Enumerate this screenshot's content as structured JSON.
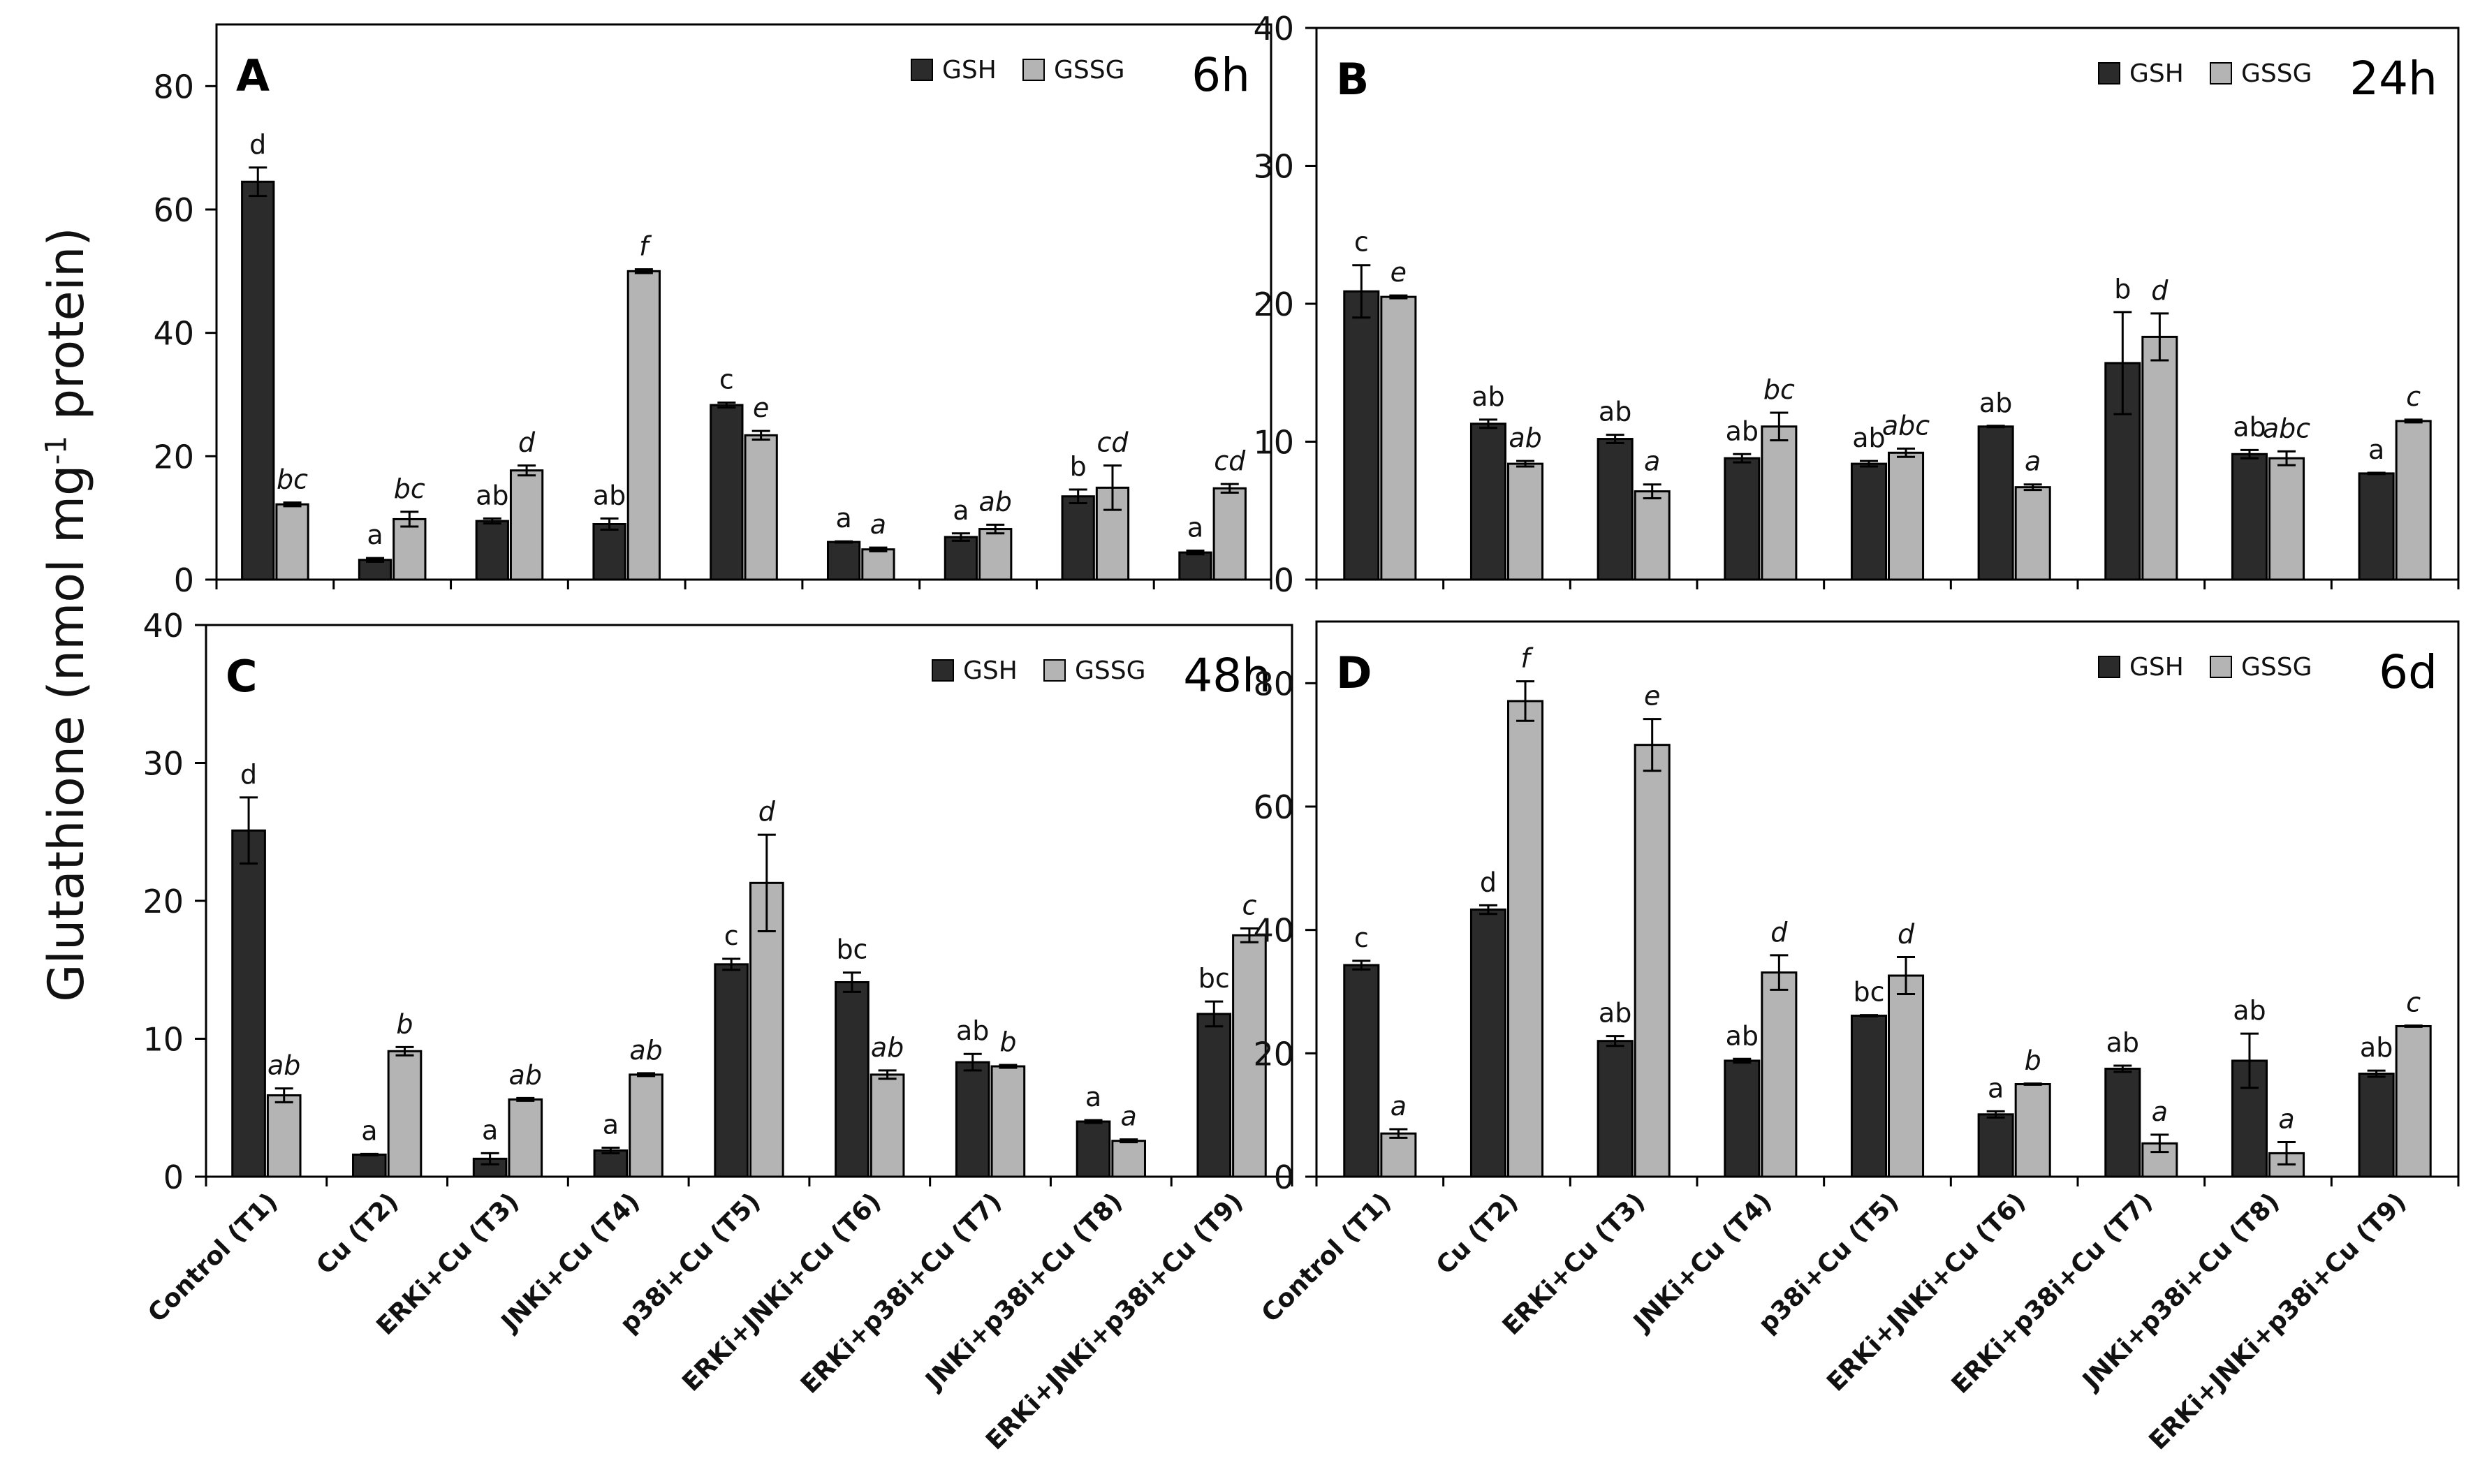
{
  "figure": {
    "ylabel_main": "Glutathione (nmol mg",
    "ylabel_sup": "-1",
    "ylabel_tail": " protein)"
  },
  "chart_data": [
    {
      "type": "bar",
      "panel": "A",
      "time": "6h",
      "categories": [
        "Control (T1)",
        "Cu (T2)",
        "ERKi+Cu (T3)",
        "JNKi+Cu (T4)",
        "p38i+Cu (T5)",
        "ERKi+JNKi+Cu (T6)",
        "ERKi+p38i+Cu (T7)",
        "JNKi+p38i+Cu (T8)",
        "ERKi+JNKi+p38i+Cu (T9)"
      ],
      "series": [
        {
          "name": "GSH",
          "color": "#2b2b2b",
          "values": [
            64.5,
            3.2,
            9.5,
            9.0,
            28.3,
            6.1,
            6.9,
            13.5,
            4.4
          ],
          "errors": [
            2.3,
            0.3,
            0.4,
            0.9,
            0.4,
            0.1,
            0.6,
            1.1,
            0.3
          ],
          "labels": [
            "d",
            "a",
            "ab",
            "ab",
            "c",
            "a",
            "a",
            "b",
            "a"
          ]
        },
        {
          "name": "GSSG",
          "color": "#b4b4b4",
          "values": [
            12.2,
            9.8,
            17.7,
            50.0,
            23.4,
            4.9,
            8.2,
            14.9,
            14.8
          ],
          "errors": [
            0.3,
            1.2,
            0.8,
            0.3,
            0.7,
            0.3,
            0.7,
            3.6,
            0.7
          ],
          "labels": [
            "bc",
            "bc",
            "d",
            "f",
            "e",
            "a",
            "ab",
            "cd",
            "cd"
          ]
        }
      ],
      "yticks": [
        0,
        20,
        40,
        60,
        80
      ],
      "ylim": [
        0,
        90
      ],
      "legend": "top-right",
      "xlabel": "",
      "ylabel": ""
    },
    {
      "type": "bar",
      "panel": "B",
      "time": "24h",
      "categories": [
        "Control (T1)",
        "Cu (T2)",
        "ERKi+Cu (T3)",
        "JNKi+Cu (T4)",
        "p38i+Cu (T5)",
        "ERKi+JNKi+Cu (T6)",
        "ERKi+p38i+Cu (T7)",
        "JNKi+p38i+Cu (T8)",
        "ERKi+JNKi+p38i+Cu (T9)"
      ],
      "series": [
        {
          "name": "GSH",
          "color": "#2b2b2b",
          "values": [
            20.9,
            11.3,
            10.2,
            8.8,
            8.4,
            11.1,
            15.7,
            9.1,
            7.7
          ],
          "errors": [
            1.9,
            0.3,
            0.3,
            0.3,
            0.2,
            0.05,
            3.7,
            0.3,
            0.05
          ],
          "labels": [
            "c",
            "ab",
            "ab",
            "ab",
            "ab",
            "ab",
            "b",
            "ab",
            "a"
          ]
        },
        {
          "name": "GSSG",
          "color": "#b4b4b4",
          "values": [
            20.5,
            8.4,
            6.4,
            11.1,
            9.2,
            6.7,
            17.6,
            8.8,
            11.5
          ],
          "errors": [
            0.1,
            0.2,
            0.5,
            1.0,
            0.3,
            0.2,
            1.7,
            0.5,
            0.1
          ],
          "labels": [
            "e",
            "ab",
            "a",
            "bc",
            "abc",
            "a",
            "d",
            "abc",
            "c"
          ]
        }
      ],
      "yticks": [
        0,
        10,
        20,
        30,
        40
      ],
      "ylim": [
        0,
        40
      ],
      "legend": "top-right",
      "xlabel": "",
      "ylabel": ""
    },
    {
      "type": "bar",
      "panel": "C",
      "time": "48h",
      "categories": [
        "Control (T1)",
        "Cu (T2)",
        "ERKi+Cu (T3)",
        "JNKi+Cu (T4)",
        "p38i+Cu (T5)",
        "ERKi+JNKi+Cu (T6)",
        "ERKi+p38i+Cu (T7)",
        "JNKi+p38i+Cu (T8)",
        "ERKi+JNKi+p38i+Cu (T9)"
      ],
      "series": [
        {
          "name": "GSH",
          "color": "#2b2b2b",
          "values": [
            25.1,
            1.6,
            1.3,
            1.9,
            15.4,
            14.1,
            8.3,
            4.0,
            11.8
          ],
          "errors": [
            2.4,
            0.05,
            0.4,
            0.2,
            0.4,
            0.7,
            0.6,
            0.1,
            0.9
          ],
          "labels": [
            "d",
            "a",
            "a",
            "a",
            "c",
            "bc",
            "ab",
            "a",
            "bc"
          ]
        },
        {
          "name": "GSSG",
          "color": "#b4b4b4",
          "values": [
            5.9,
            9.1,
            5.6,
            7.4,
            21.3,
            7.4,
            8.0,
            2.6,
            17.5
          ],
          "errors": [
            0.5,
            0.3,
            0.1,
            0.1,
            3.5,
            0.3,
            0.1,
            0.1,
            0.5
          ],
          "labels": [
            "ab",
            "b",
            "ab",
            "ab",
            "d",
            "ab",
            "b",
            "a",
            "c"
          ]
        }
      ],
      "yticks": [
        0,
        10,
        20,
        30,
        40
      ],
      "ylim": [
        0,
        40
      ],
      "legend": "top-right",
      "xlabel": "",
      "ylabel": ""
    },
    {
      "type": "bar",
      "panel": "D",
      "time": "6d",
      "categories": [
        "Control (T1)",
        "Cu (T2)",
        "ERKi+Cu (T3)",
        "JNKi+Cu (T4)",
        "p38i+Cu (T5)",
        "ERKi+JNKi+Cu (T6)",
        "ERKi+p38i+Cu (T7)",
        "JNKi+p38i+Cu (T8)",
        "ERKi+JNKi+p38i+Cu (T9)"
      ],
      "series": [
        {
          "name": "GSH",
          "color": "#2b2b2b",
          "values": [
            34.3,
            43.3,
            22.0,
            18.8,
            26.1,
            10.1,
            17.5,
            18.8,
            16.7
          ],
          "errors": [
            0.7,
            0.7,
            0.8,
            0.3,
            0.1,
            0.5,
            0.5,
            4.4,
            0.5
          ],
          "labels": [
            "c",
            "d",
            "ab",
            "ab",
            "bc",
            "a",
            "ab",
            "ab",
            "ab"
          ]
        },
        {
          "name": "GSSG",
          "color": "#b4b4b4",
          "values": [
            7.0,
            77.1,
            70.0,
            33.1,
            32.6,
            15.0,
            5.4,
            3.8,
            24.4
          ],
          "errors": [
            0.7,
            3.2,
            4.2,
            2.8,
            3.0,
            0.1,
            1.4,
            1.8,
            0.1
          ],
          "labels": [
            "a",
            "f",
            "e",
            "d",
            "d",
            "b",
            "a",
            "a",
            "c"
          ]
        }
      ],
      "yticks": [
        0,
        20,
        40,
        60,
        80
      ],
      "ylim": [
        0,
        90
      ],
      "legend": "top-right",
      "xlabel": "",
      "ylabel": ""
    }
  ]
}
